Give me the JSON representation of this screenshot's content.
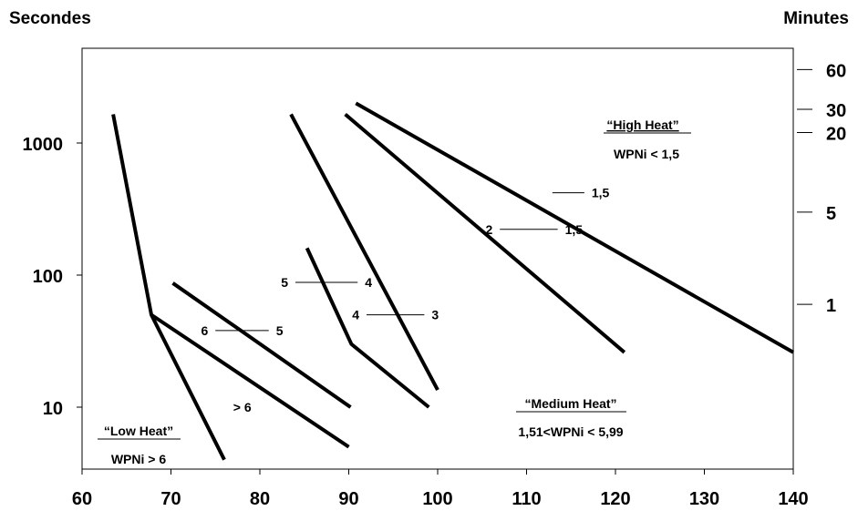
{
  "chart_data": {
    "type": "line",
    "ylabel_left": "Secondes",
    "ylabel_right": "Minutes",
    "xlim": [
      60,
      140
    ],
    "ylim": [
      3,
      6000
    ],
    "y_scale": "log",
    "x_ticks": [
      "60",
      "70",
      "80",
      "90",
      "100",
      "110",
      "120",
      "130",
      "140"
    ],
    "x_tick_values": [
      60,
      70,
      80,
      90,
      100,
      110,
      120,
      130,
      140
    ],
    "y_left_ticks": [
      {
        "value": 10,
        "label": "10"
      },
      {
        "value": 100,
        "label": "100"
      },
      {
        "value": 1000,
        "label": "1000"
      }
    ],
    "y_right_ticks": [
      {
        "seconds": 60,
        "label": "1"
      },
      {
        "seconds": 300,
        "label": "5"
      },
      {
        "seconds": 1200,
        "label": "20"
      },
      {
        "seconds": 1800,
        "label": "30"
      },
      {
        "seconds": 3600,
        "label": "60"
      }
    ],
    "series": [
      {
        "x": [
          63.5,
          67.8,
          76
        ],
        "y": [
          1650,
          50,
          4
        ]
      },
      {
        "x": [
          67.8,
          90
        ],
        "y": [
          50,
          5
        ]
      },
      {
        "x": [
          70.2,
          90.2
        ],
        "y": [
          87,
          10
        ]
      },
      {
        "x": [
          83.5,
          100
        ],
        "y": [
          1650,
          13.5
        ]
      },
      {
        "x": [
          85.3,
          90.3,
          99
        ],
        "y": [
          160,
          30,
          10
        ]
      },
      {
        "x": [
          89.6,
          121
        ],
        "y": [
          1650,
          26
        ]
      },
      {
        "x": [
          90.8,
          140
        ],
        "y": [
          2000,
          26
        ]
      }
    ],
    "annotations": [
      {
        "left": "6",
        "right": "5",
        "x1": 75,
        "x2": 81,
        "y": 38
      },
      {
        "left": "5",
        "right": "4",
        "x1": 84,
        "x2": 91,
        "y": 88
      },
      {
        "left": "4",
        "right": "3",
        "x1": 92,
        "x2": 98.5,
        "y": 50
      },
      {
        "left": "2",
        "right": "1,5",
        "x1": 107,
        "x2": 113.5,
        "y": 222
      },
      {
        "left": "",
        "right": "1,5",
        "x1": 112.9,
        "x2": 116.5,
        "y": 420
      },
      {
        "left": "> 6",
        "right": "",
        "x1": null,
        "x2": null,
        "y": 10,
        "x": 77
      }
    ],
    "zones": [
      {
        "title": "“High Heat”",
        "subtitle": "WPNi < 1,5"
      },
      {
        "title": "“Medium Heat”",
        "subtitle": "1,51<WPNi < 5,99"
      },
      {
        "title": "“Low Heat”",
        "subtitle": "WPNi > 6"
      }
    ]
  }
}
